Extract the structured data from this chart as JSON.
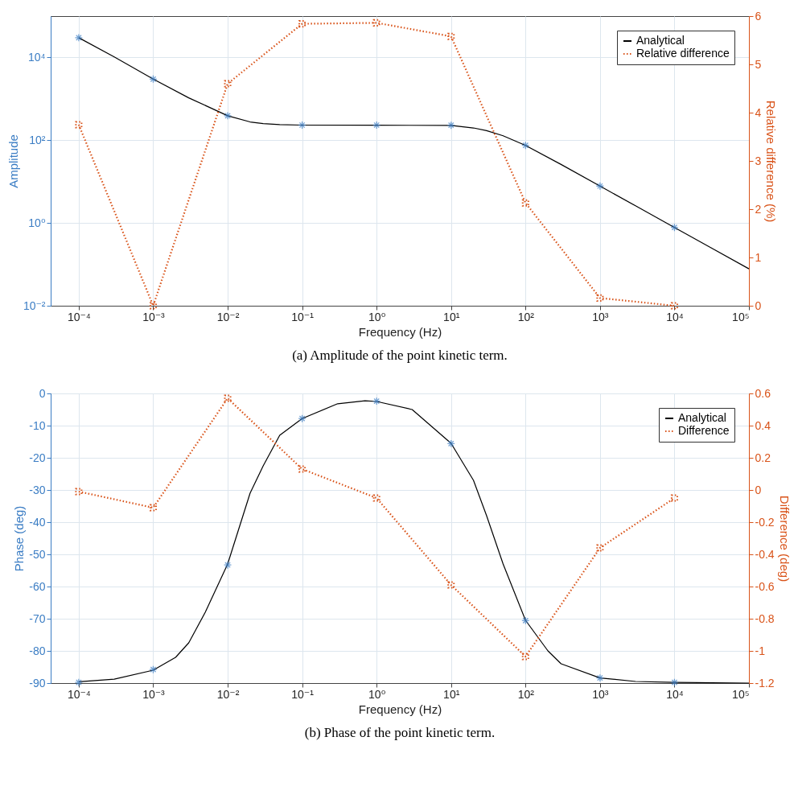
{
  "chart_data": [
    {
      "type": "line",
      "xlabel": "Frequency (Hz)",
      "ylabel": "Amplitude",
      "y2label": "Relative difference (%)",
      "log": "xy",
      "grid": true,
      "legend": "top right",
      "xlim": [
        4.2e-05,
        100000
      ],
      "xticks": [
        {
          "value": 0.0001,
          "label": "10⁻⁴"
        },
        {
          "value": 0.001,
          "label": "10⁻³"
        },
        {
          "value": 0.01,
          "label": "10⁻²"
        },
        {
          "value": 0.1,
          "label": "10⁻¹"
        },
        {
          "value": 1,
          "label": "10⁰"
        },
        {
          "value": 10,
          "label": "10¹"
        },
        {
          "value": 100,
          "label": "10²"
        },
        {
          "value": 1000,
          "label": "10³"
        },
        {
          "value": 10000,
          "label": "10⁴"
        },
        {
          "value": 100000,
          "label": "10⁵"
        }
      ],
      "ylim": [
        0.01,
        100000
      ],
      "yticks": [
        {
          "value": 0.01,
          "label": "10⁻²"
        },
        {
          "value": 1,
          "label": "10⁰"
        },
        {
          "value": 100,
          "label": "10²"
        },
        {
          "value": 10000,
          "label": "10⁴"
        }
      ],
      "y2lim": [
        0,
        6
      ],
      "y2ticks": [
        0,
        1,
        2,
        3,
        4,
        5,
        6
      ],
      "annotations": [
        "(a) Amplitude of the point kinetic term."
      ],
      "series": [
        {
          "name": "Analytical",
          "type": "line",
          "color": "#000000",
          "marker": "none",
          "line_style": "solid",
          "x": [
            0.0001,
            0.0003,
            0.001,
            0.003,
            0.01,
            0.02,
            0.03,
            0.05,
            0.1,
            1,
            10,
            20,
            30,
            50,
            100,
            300,
            1000,
            3000,
            10000,
            30000,
            100000
          ],
          "values": [
            30000,
            10300,
            3000,
            1058,
            390,
            277,
            252,
            238,
            232,
            230,
            228,
            198,
            170,
            128,
            75,
            26,
            7.8,
            2.6,
            0.78,
            0.26,
            0.078
          ]
        },
        {
          "type": "scatter",
          "color": "#3b7dc4",
          "marker": "cross",
          "x": [
            0.0001,
            0.001,
            0.01,
            0.1,
            1,
            10,
            100,
            1000,
            10000
          ],
          "values": [
            30000,
            3000,
            390,
            232,
            232,
            230,
            75,
            7.8,
            0.78
          ]
        },
        {
          "name": "Relative difference",
          "type": "line",
          "axis": "y2",
          "color": "#d95319",
          "marker": "square",
          "line_style": "dotted",
          "x": [
            0.0001,
            0.001,
            0.01,
            0.1,
            1,
            10,
            100,
            1000,
            10000
          ],
          "values": [
            3.75,
            0,
            4.6,
            5.84,
            5.86,
            5.58,
            2.13,
            0.16,
            0
          ]
        }
      ]
    },
    {
      "type": "line",
      "xlabel": "Frequency (Hz)",
      "ylabel": "Phase (deg)",
      "y2label": "Difference (deg)",
      "log": "x",
      "grid": true,
      "legend": "top right",
      "xlim": [
        4.2e-05,
        100000
      ],
      "xticks": [
        {
          "value": 0.0001,
          "label": "10⁻⁴"
        },
        {
          "value": 0.001,
          "label": "10⁻³"
        },
        {
          "value": 0.01,
          "label": "10⁻²"
        },
        {
          "value": 0.1,
          "label": "10⁻¹"
        },
        {
          "value": 1,
          "label": "10⁰"
        },
        {
          "value": 10,
          "label": "10¹"
        },
        {
          "value": 100,
          "label": "10²"
        },
        {
          "value": 1000,
          "label": "10³"
        },
        {
          "value": 10000,
          "label": "10⁴"
        },
        {
          "value": 100000,
          "label": "10⁵"
        }
      ],
      "ylim": [
        -90,
        0
      ],
      "yticks": [
        -90,
        -80,
        -70,
        -60,
        -50,
        -40,
        -30,
        -20,
        -10,
        0
      ],
      "y2lim": [
        -1.2,
        0.6
      ],
      "y2ticks": [
        -1.2,
        -1,
        -0.8,
        -0.6,
        -0.4,
        -0.2,
        0,
        0.2,
        0.4,
        0.6
      ],
      "annotations": [
        "(b) Phase of the point kinetic term."
      ],
      "series": [
        {
          "name": "Analytical",
          "type": "line",
          "color": "#000000",
          "marker": "none",
          "line_style": "solid",
          "x": [
            0.0001,
            0.0003,
            0.001,
            0.002,
            0.003,
            0.005,
            0.01,
            0.02,
            0.03,
            0.05,
            0.1,
            0.3,
            0.7,
            1,
            3,
            10,
            20,
            30,
            50,
            100,
            200,
            300,
            1000,
            3000,
            10000,
            100000
          ],
          "values": [
            -89.6,
            -88.8,
            -86,
            -82,
            -77.5,
            -68,
            -53,
            -31,
            -22.5,
            -13,
            -7.8,
            -3.2,
            -2.3,
            -2.5,
            -5,
            -15.5,
            -27,
            -38,
            -53,
            -70.5,
            -80,
            -84,
            -88.4,
            -89.5,
            -89.8,
            -90
          ]
        },
        {
          "type": "scatter",
          "color": "#3b7dc4",
          "marker": "cross",
          "x": [
            0.0001,
            0.001,
            0.01,
            0.1,
            1,
            10,
            100,
            1000,
            10000
          ],
          "values": [
            -89.8,
            -85.8,
            -53.3,
            -7.8,
            -2.4,
            -15.6,
            -70.6,
            -88.4,
            -89.8
          ]
        },
        {
          "name": "Difference",
          "type": "line",
          "axis": "y2",
          "color": "#d95319",
          "marker": "square",
          "line_style": "dotted",
          "x": [
            0.0001,
            0.001,
            0.01,
            0.1,
            1,
            10,
            100,
            1000,
            10000
          ],
          "values": [
            -0.01,
            -0.11,
            0.57,
            0.13,
            -0.05,
            -0.59,
            -1.035,
            -0.36,
            -0.05
          ]
        }
      ]
    }
  ]
}
